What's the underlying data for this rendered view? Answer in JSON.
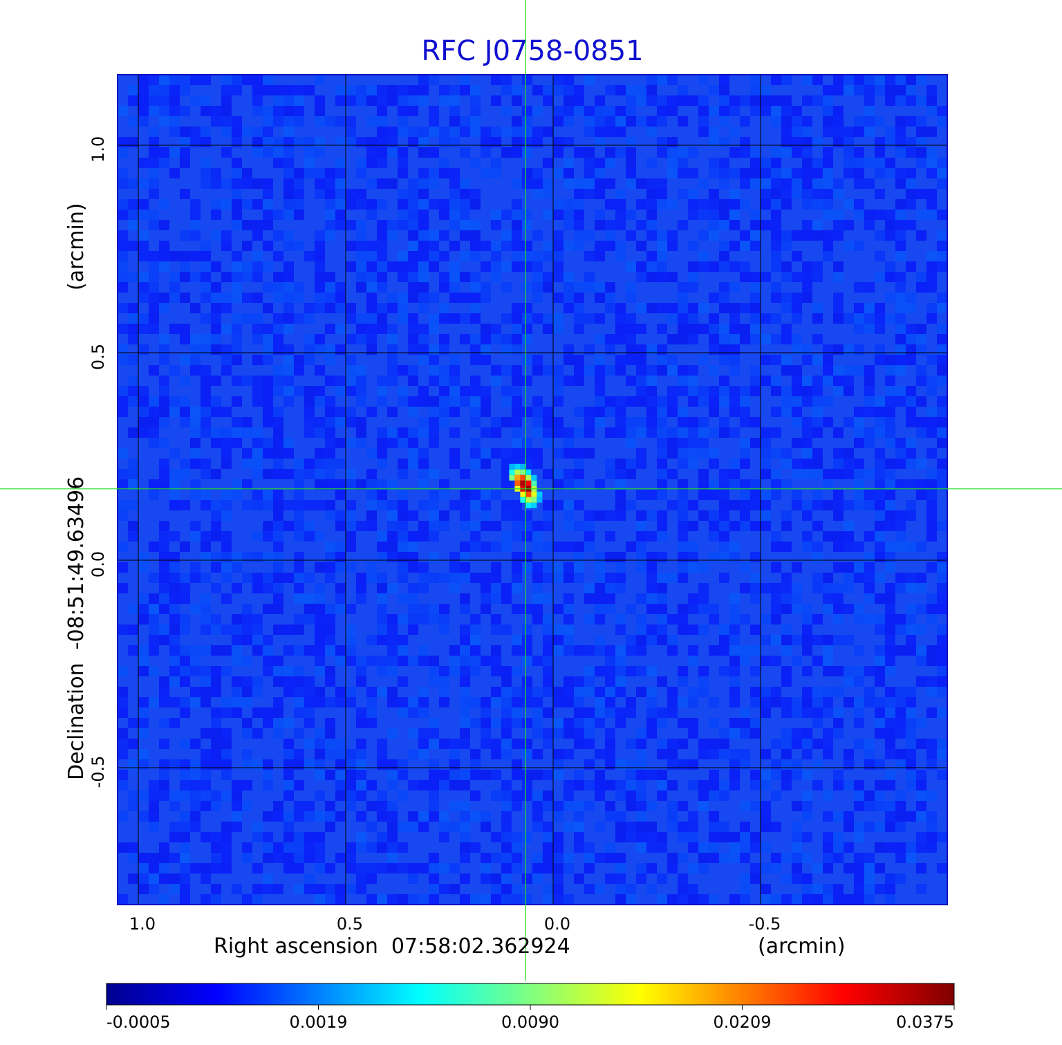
{
  "chart_data": {
    "type": "heatmap",
    "title": "RFC J0758-0851",
    "xlabel": "Right ascension  07:58:02.362924",
    "xunit": "(arcmin)",
    "ylabel": "Declination  -08:51:49.63496",
    "yunit": "(arcmin)",
    "x_ticks": [
      1.0,
      0.5,
      0.0,
      -0.5
    ],
    "x_tick_labels": [
      "1.0",
      "0.5",
      "0.0",
      "-0.5"
    ],
    "y_ticks": [
      1.0,
      0.5,
      0.0,
      -0.5
    ],
    "y_tick_labels": [
      "1.0",
      "0.5",
      "0.0",
      "-0.5"
    ],
    "xlim": [
      1.05,
      -0.95
    ],
    "ylim": [
      -0.83,
      1.17
    ],
    "grid": true,
    "x_direction": "decreasing to the right",
    "crosshair": {
      "x": 0.066,
      "y": 0.172,
      "color": "#22dd22"
    },
    "source_peak": {
      "x": 0.066,
      "y": 0.172,
      "value": 0.0375
    },
    "colormap": "jet",
    "colorbar": {
      "position": "bottom",
      "tick_labels": [
        "-0.0005",
        "0.0019",
        "0.0090",
        "0.0209",
        "0.0375"
      ],
      "tick_values": [
        -0.0005,
        0.0019,
        0.009,
        0.0209,
        0.0375
      ]
    }
  }
}
